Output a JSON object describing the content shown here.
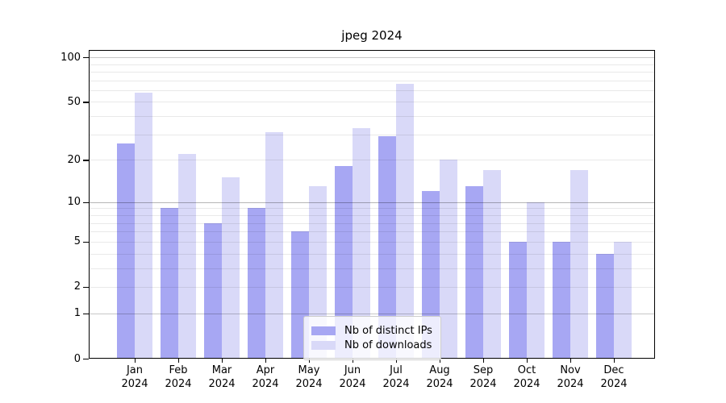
{
  "title": "jpeg 2024",
  "chart_data": {
    "type": "bar",
    "title": "jpeg 2024",
    "categories": [
      "Jan 2024",
      "Feb 2024",
      "Mar 2024",
      "Apr 2024",
      "May 2024",
      "Jun 2024",
      "Jul 2024",
      "Aug 2024",
      "Sep 2024",
      "Oct 2024",
      "Nov 2024",
      "Dec 2024"
    ],
    "series": [
      {
        "name": "Nb of distinct IPs",
        "color": "#a7a7f3",
        "values": [
          26,
          9,
          7,
          9,
          6,
          18,
          29,
          12,
          13,
          5,
          5,
          4
        ]
      },
      {
        "name": "Nb of downloads",
        "color": "#d9d9f8",
        "values": [
          58,
          22,
          15,
          31,
          13,
          33,
          66,
          20,
          17,
          10,
          17,
          5
        ]
      }
    ],
    "xlabel": "",
    "ylabel": "",
    "yscale": "log1p",
    "y_ticks": [
      0,
      1,
      2,
      5,
      10,
      20,
      50,
      100
    ],
    "ylim": [
      0,
      112
    ],
    "grid": true,
    "legend_position": "lower center",
    "colors": {
      "ips_bar": "#a7a7f3",
      "downloads_bar": "#d9d9f8",
      "spine": "#000000",
      "minor_grid": "#e9e9e9",
      "major_grid": "#c6c6c6"
    }
  }
}
